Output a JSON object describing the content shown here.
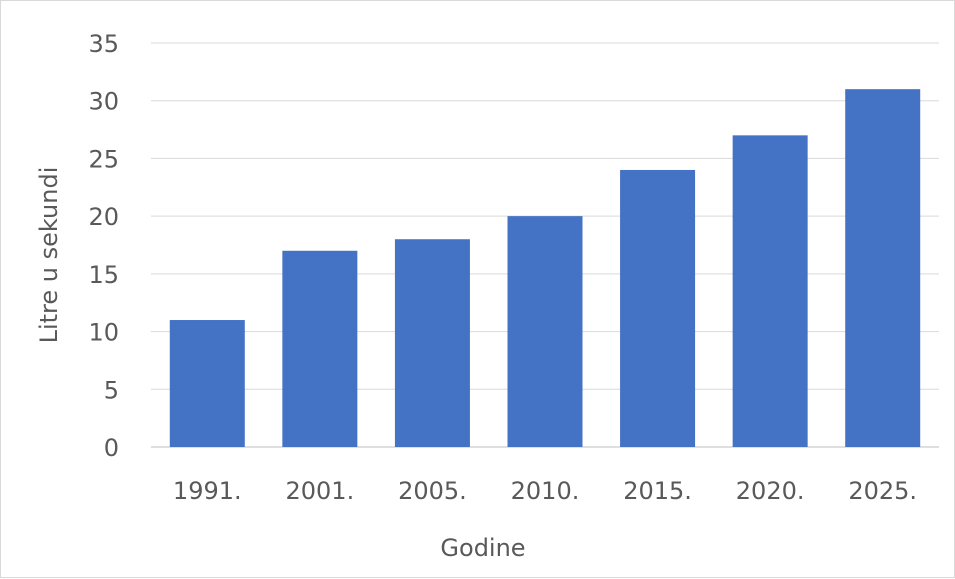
{
  "chart_data": {
    "type": "bar",
    "title": "",
    "xlabel": "Godine",
    "ylabel": "Litre u sekundi",
    "categories": [
      "1991.",
      "2001.",
      "2005.",
      "2010.",
      "2015.",
      "2020.",
      "2025."
    ],
    "series": [
      {
        "values": [
          11,
          17,
          18,
          20,
          24,
          27,
          31
        ]
      }
    ],
    "ylim": [
      0,
      35
    ],
    "yticks": [
      0,
      5,
      10,
      15,
      20,
      25,
      30,
      35
    ],
    "grid": true,
    "legend": "none",
    "colors": {
      "bar": "#4472C4",
      "grid": "#D9D9D9",
      "text": "#595959"
    }
  }
}
